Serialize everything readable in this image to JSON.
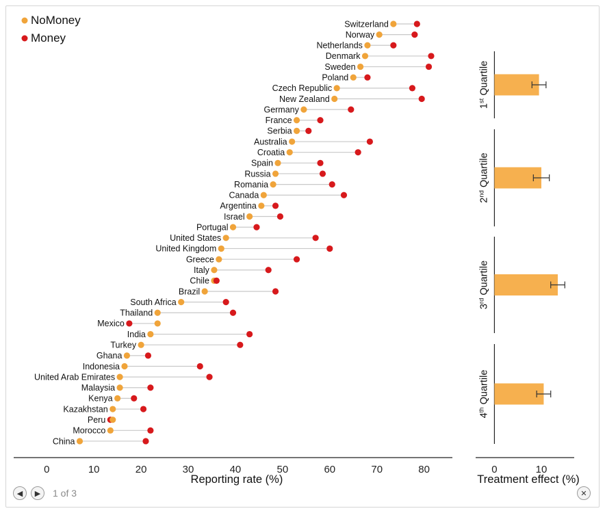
{
  "pager": {
    "page_text": "1 of 3",
    "prev_icon": "arrow-left-icon",
    "next_icon": "arrow-right-icon",
    "close_icon": "close-icon"
  },
  "colors": {
    "nomoney": "#f0a43a",
    "money": "#d7191c",
    "bar": "#f6b04f",
    "connector": "#c8c8c8"
  },
  "chart_data": [
    {
      "type": "dumbbell",
      "xlabel": "Reporting rate (%)",
      "xlim": [
        -7,
        86
      ],
      "xticks": [
        0,
        10,
        20,
        30,
        40,
        50,
        60,
        70,
        80
      ],
      "legend": {
        "placement": "top-left",
        "entries": [
          "NoMoney",
          "Money"
        ]
      },
      "series": [
        {
          "name": "NoMoney"
        },
        {
          "name": "Money"
        }
      ],
      "countries": [
        {
          "name": "Switzerland",
          "nomoney": 73.5,
          "money": 78.5
        },
        {
          "name": "Norway",
          "nomoney": 70.5,
          "money": 78
        },
        {
          "name": "Netherlands",
          "nomoney": 68,
          "money": 73.5
        },
        {
          "name": "Denmark",
          "nomoney": 67.5,
          "money": 81.5
        },
        {
          "name": "Sweden",
          "nomoney": 66.5,
          "money": 81
        },
        {
          "name": "Poland",
          "nomoney": 65,
          "money": 68
        },
        {
          "name": "Czech Republic",
          "nomoney": 61.5,
          "money": 77.5
        },
        {
          "name": "New Zealand",
          "nomoney": 61,
          "money": 79.5
        },
        {
          "name": "Germany",
          "nomoney": 54.5,
          "money": 64.5
        },
        {
          "name": "France",
          "nomoney": 53,
          "money": 58
        },
        {
          "name": "Serbia",
          "nomoney": 53,
          "money": 55.5
        },
        {
          "name": "Australia",
          "nomoney": 52,
          "money": 68.5
        },
        {
          "name": "Croatia",
          "nomoney": 51.5,
          "money": 66
        },
        {
          "name": "Spain",
          "nomoney": 49,
          "money": 58
        },
        {
          "name": "Russia",
          "nomoney": 48.5,
          "money": 58.5
        },
        {
          "name": "Romania",
          "nomoney": 48,
          "money": 60.5
        },
        {
          "name": "Canada",
          "nomoney": 46,
          "money": 63
        },
        {
          "name": "Argentina",
          "nomoney": 45.5,
          "money": 48.5
        },
        {
          "name": "Israel",
          "nomoney": 43,
          "money": 49.5
        },
        {
          "name": "Portugal",
          "nomoney": 39.5,
          "money": 44.5
        },
        {
          "name": "United States",
          "nomoney": 38,
          "money": 57
        },
        {
          "name": "United Kingdom",
          "nomoney": 37,
          "money": 60
        },
        {
          "name": "Greece",
          "nomoney": 36.5,
          "money": 53
        },
        {
          "name": "Italy",
          "nomoney": 35.5,
          "money": 47
        },
        {
          "name": "Chile",
          "nomoney": 35.5,
          "money": 36
        },
        {
          "name": "Brazil",
          "nomoney": 33.5,
          "money": 48.5
        },
        {
          "name": "South Africa",
          "nomoney": 28.5,
          "money": 38
        },
        {
          "name": "Thailand",
          "nomoney": 23.5,
          "money": 39.5
        },
        {
          "name": "Mexico",
          "nomoney": 23.5,
          "money": 17.5
        },
        {
          "name": "India",
          "nomoney": 22,
          "money": 43
        },
        {
          "name": "Turkey",
          "nomoney": 20,
          "money": 41
        },
        {
          "name": "Ghana",
          "nomoney": 17,
          "money": 21.5
        },
        {
          "name": "Indonesia",
          "nomoney": 16.5,
          "money": 32.5
        },
        {
          "name": "United Arab Emirates",
          "nomoney": 15.5,
          "money": 34.5
        },
        {
          "name": "Malaysia",
          "nomoney": 15.5,
          "money": 22
        },
        {
          "name": "Kenya",
          "nomoney": 15,
          "money": 18.5
        },
        {
          "name": "Kazakhstan",
          "nomoney": 14,
          "money": 20.5
        },
        {
          "name": "Peru",
          "nomoney": 14,
          "money": 13.5
        },
        {
          "name": "Morocco",
          "nomoney": 13.5,
          "money": 22
        },
        {
          "name": "China",
          "nomoney": 7,
          "money": 21
        }
      ]
    },
    {
      "type": "bar",
      "orientation": "horizontal",
      "xlabel": "Treatment effect (%)",
      "xlim": [
        -4,
        17
      ],
      "xticks": [
        0,
        10
      ],
      "categories": [
        "1st Quartile",
        "2nd Quartile",
        "3rd Quartile",
        "4th Quartile"
      ],
      "category_main": [
        "1",
        "2",
        "3",
        "4"
      ],
      "category_sup": [
        "st",
        "nd",
        "rd",
        "th"
      ],
      "category_suffix": " Quartile",
      "values": [
        9.5,
        10,
        13.5,
        10.5
      ],
      "error": [
        1.5,
        1.7,
        1.5,
        1.5
      ]
    }
  ]
}
